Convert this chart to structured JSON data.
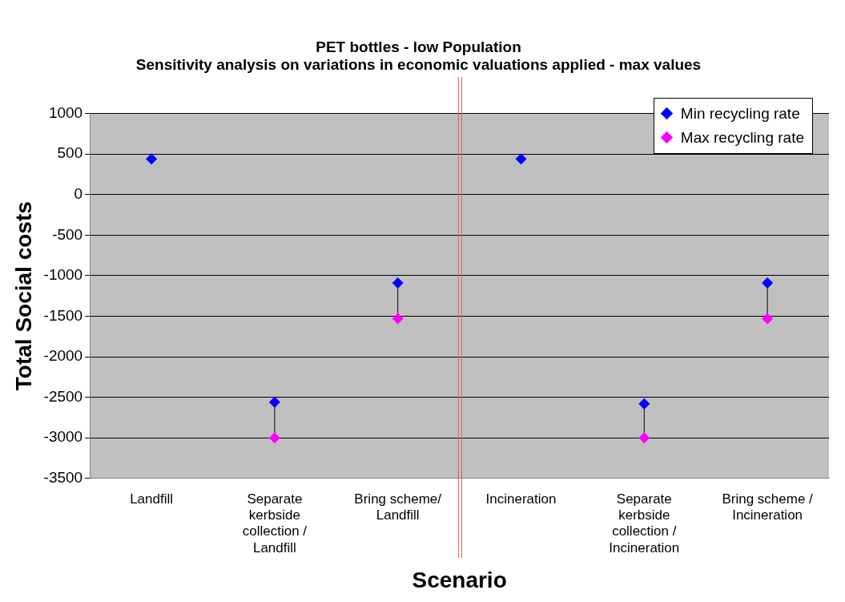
{
  "chart_data": {
    "type": "scatter",
    "title": "PET bottles - low Population",
    "subtitle": "Sensitivity analysis on variations in economic valuations applied - max values",
    "xlabel": "Scenario",
    "ylabel": "Total Social costs",
    "categories": [
      "Landfill",
      "Separate kerbside collection / Landfill",
      "Bring scheme/ Landfill",
      "Incineration",
      "Separate kerbside collection / Incineration",
      "Bring scheme / Incineration"
    ],
    "series": [
      {
        "name": "Min recycling rate",
        "color": "#0000ff",
        "values": [
          440,
          -2560,
          -1090,
          440,
          -2580,
          -1090
        ]
      },
      {
        "name": "Max recycling rate",
        "color": "#ff00ff",
        "values": [
          null,
          -3000,
          -1530,
          null,
          -3000,
          -1530
        ]
      }
    ],
    "ylim": [
      -3500,
      1000
    ],
    "yticks": [
      -3500,
      -3000,
      -2500,
      -2000,
      -1500,
      -1000,
      -500,
      0,
      500,
      1000
    ],
    "grid": "y",
    "legend": "top right",
    "marker": "diamond"
  }
}
